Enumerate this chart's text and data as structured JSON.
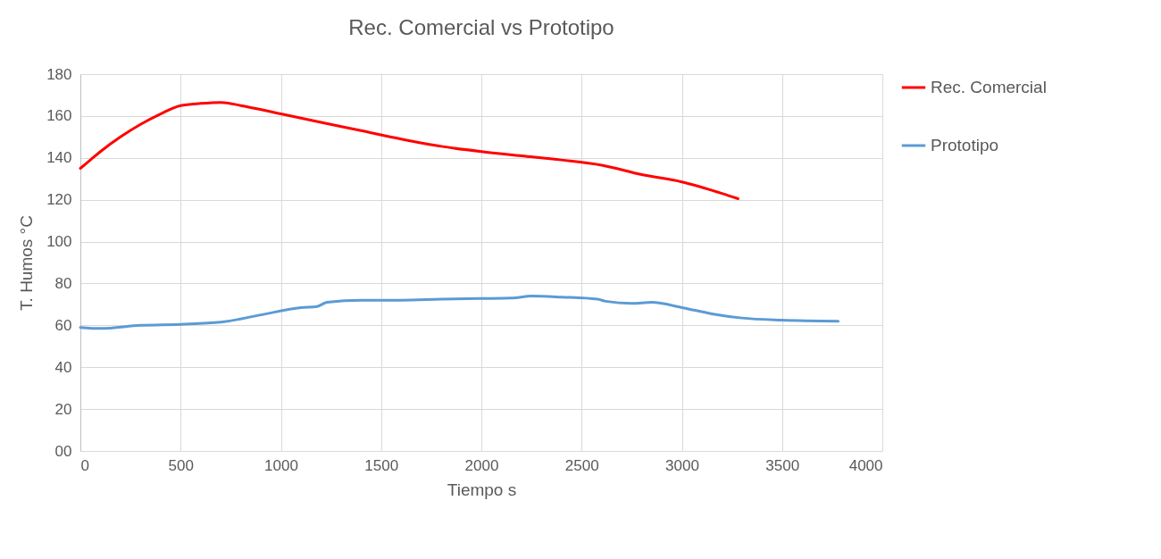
{
  "chart_data": {
    "type": "line",
    "title": "Rec. Comercial vs Prototipo",
    "xlabel": "Tiempo s",
    "ylabel": "T. Humos °C",
    "xlim": [
      0,
      4000
    ],
    "xticks": [
      0,
      500,
      1000,
      1500,
      2000,
      2500,
      3000,
      3500,
      4000
    ],
    "ylim": [
      0,
      180
    ],
    "yticks": [
      {
        "value": 0,
        "label": "00"
      },
      20,
      40,
      60,
      80,
      100,
      120,
      140,
      160,
      180
    ],
    "grid": true,
    "legend": "right",
    "marker": "none",
    "line_style": "solid",
    "series": [
      {
        "name": "Rec. Comercial",
        "color": "#ff0000",
        "x": [
          0,
          50,
          100,
          200,
          300,
          400,
          500,
          600,
          700,
          800,
          1000,
          1200,
          1400,
          1600,
          1800,
          2000,
          2200,
          2400,
          2600,
          2800,
          3000,
          3200,
          3280
        ],
        "values": [
          135,
          139,
          143,
          150,
          156,
          161,
          165,
          166,
          166.5,
          165,
          161,
          157,
          153,
          149,
          145.5,
          143,
          141,
          139,
          136.5,
          132,
          128.5,
          123,
          120.5
        ]
      },
      {
        "name": "Prototipo",
        "color": "#5b9bd5",
        "x": [
          0,
          100,
          300,
          500,
          700,
          900,
          1100,
          1180,
          1230,
          1400,
          1600,
          1800,
          2000,
          2150,
          2250,
          2400,
          2580,
          2620,
          2750,
          2850,
          3000,
          3150,
          3300,
          3500,
          3780
        ],
        "values": [
          59,
          58.5,
          60,
          60.5,
          61.5,
          65,
          68.5,
          69,
          71,
          72,
          72,
          72.5,
          72.8,
          73,
          74,
          73.5,
          72.5,
          71.5,
          70.5,
          71,
          68.5,
          65.5,
          63.5,
          62.5,
          62
        ]
      }
    ]
  }
}
